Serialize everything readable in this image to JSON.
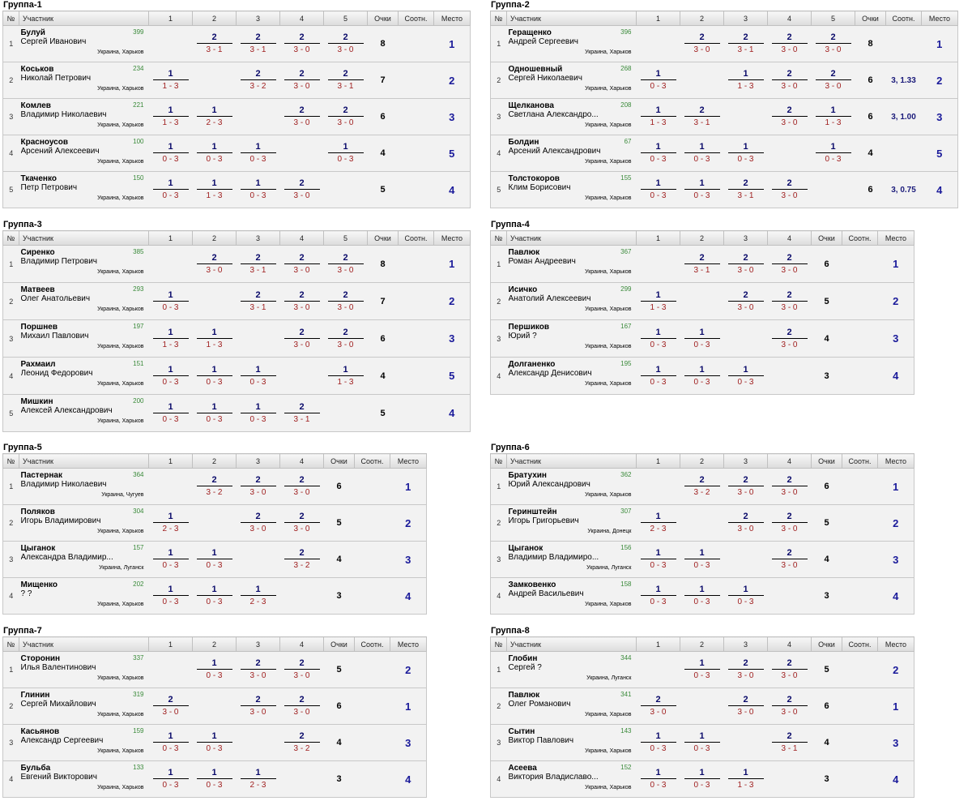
{
  "headers": {
    "num": "№",
    "participant": "Участник",
    "points": "Очки",
    "ratio": "Соотн.",
    "place": "Место"
  },
  "groups": [
    {
      "title": "Группа-1",
      "players": [
        {
          "surname": "Булуй",
          "first": "Сергей Иванович",
          "rating": "399",
          "city": "Украина, Харьков",
          "results": [
            null,
            [
              "2",
              "3 - 1"
            ],
            [
              "2",
              "3 - 1"
            ],
            [
              "2",
              "3 - 0"
            ],
            [
              "2",
              "3 - 0"
            ]
          ],
          "points": "8",
          "ratio": "",
          "place": "1"
        },
        {
          "surname": "Коськов",
          "first": "Николай Петрович",
          "rating": "234",
          "city": "Украина, Харьков",
          "results": [
            [
              "1",
              "1 - 3"
            ],
            null,
            [
              "2",
              "3 - 2"
            ],
            [
              "2",
              "3 - 0"
            ],
            [
              "2",
              "3 - 1"
            ]
          ],
          "points": "7",
          "ratio": "",
          "place": "2"
        },
        {
          "surname": "Комлев",
          "first": "Владимир Николаевич",
          "rating": "221",
          "city": "Украина, Харьков",
          "results": [
            [
              "1",
              "1 - 3"
            ],
            [
              "1",
              "2 - 3"
            ],
            null,
            [
              "2",
              "3 - 0"
            ],
            [
              "2",
              "3 - 0"
            ]
          ],
          "points": "6",
          "ratio": "",
          "place": "3"
        },
        {
          "surname": "Красноусов",
          "first": "Арсений Алексеевич",
          "rating": "100",
          "city": "Украина, Харьков",
          "results": [
            [
              "1",
              "0 - 3"
            ],
            [
              "1",
              "0 - 3"
            ],
            [
              "1",
              "0 - 3"
            ],
            null,
            [
              "1",
              "0 - 3"
            ]
          ],
          "points": "4",
          "ratio": "",
          "place": "5"
        },
        {
          "surname": "Ткаченко",
          "first": "Петр Петрович",
          "rating": "150",
          "city": "Украина, Харьков",
          "results": [
            [
              "1",
              "0 - 3"
            ],
            [
              "1",
              "1 - 3"
            ],
            [
              "1",
              "0 - 3"
            ],
            [
              "2",
              "3 - 0"
            ],
            null
          ],
          "points": "5",
          "ratio": "",
          "place": "4"
        }
      ]
    },
    {
      "title": "Группа-2",
      "players": [
        {
          "surname": "Геращенко",
          "first": "Андрей Сергеевич",
          "rating": "396",
          "city": "Украина, Харьков",
          "results": [
            null,
            [
              "2",
              "3 - 0"
            ],
            [
              "2",
              "3 - 1"
            ],
            [
              "2",
              "3 - 0"
            ],
            [
              "2",
              "3 - 0"
            ]
          ],
          "points": "8",
          "ratio": "",
          "place": "1"
        },
        {
          "surname": "Одношевный",
          "first": "Сергей Николаевич",
          "rating": "268",
          "city": "Украина, Харьков",
          "results": [
            [
              "1",
              "0 - 3"
            ],
            null,
            [
              "1",
              "1 - 3"
            ],
            [
              "2",
              "3 - 0"
            ],
            [
              "2",
              "3 - 0"
            ]
          ],
          "points": "6",
          "ratio": "3, 1.33",
          "place": "2"
        },
        {
          "surname": "Щелканова",
          "first": "Светлана Александро...",
          "rating": "208",
          "city": "Украина, Харьков",
          "results": [
            [
              "1",
              "1 - 3"
            ],
            [
              "2",
              "3 - 1"
            ],
            null,
            [
              "2",
              "3 - 0"
            ],
            [
              "1",
              "1 - 3"
            ]
          ],
          "points": "6",
          "ratio": "3, 1.00",
          "place": "3"
        },
        {
          "surname": "Болдин",
          "first": "Арсений Александрович",
          "rating": "67",
          "city": "Украина, Харьков",
          "results": [
            [
              "1",
              "0 - 3"
            ],
            [
              "1",
              "0 - 3"
            ],
            [
              "1",
              "0 - 3"
            ],
            null,
            [
              "1",
              "0 - 3"
            ]
          ],
          "points": "4",
          "ratio": "",
          "place": "5"
        },
        {
          "surname": "Толстокоров",
          "first": "Клим Борисович",
          "rating": "155",
          "city": "Украина, Харьков",
          "results": [
            [
              "1",
              "0 - 3"
            ],
            [
              "1",
              "0 - 3"
            ],
            [
              "2",
              "3 - 1"
            ],
            [
              "2",
              "3 - 0"
            ],
            null
          ],
          "points": "6",
          "ratio": "3, 0.75",
          "place": "4"
        }
      ]
    },
    {
      "title": "Группа-3",
      "players": [
        {
          "surname": "Сиренко",
          "first": "Владимир Петрович",
          "rating": "385",
          "city": "Украина, Харьков",
          "results": [
            null,
            [
              "2",
              "3 - 0"
            ],
            [
              "2",
              "3 - 1"
            ],
            [
              "2",
              "3 - 0"
            ],
            [
              "2",
              "3 - 0"
            ]
          ],
          "points": "8",
          "ratio": "",
          "place": "1"
        },
        {
          "surname": "Матвеев",
          "first": "Олег Анатольевич",
          "rating": "293",
          "city": "Украина, Харьков",
          "results": [
            [
              "1",
              "0 - 3"
            ],
            null,
            [
              "2",
              "3 - 1"
            ],
            [
              "2",
              "3 - 0"
            ],
            [
              "2",
              "3 - 0"
            ]
          ],
          "points": "7",
          "ratio": "",
          "place": "2"
        },
        {
          "surname": "Поршнев",
          "first": "Михаил Павлович",
          "rating": "197",
          "city": "Украина, Харьков",
          "results": [
            [
              "1",
              "1 - 3"
            ],
            [
              "1",
              "1 - 3"
            ],
            null,
            [
              "2",
              "3 - 0"
            ],
            [
              "2",
              "3 - 0"
            ]
          ],
          "points": "6",
          "ratio": "",
          "place": "3"
        },
        {
          "surname": "Рахмаил",
          "first": "Леонид Федорович",
          "rating": "151",
          "city": "Украина, Харьков",
          "results": [
            [
              "1",
              "0 - 3"
            ],
            [
              "1",
              "0 - 3"
            ],
            [
              "1",
              "0 - 3"
            ],
            null,
            [
              "1",
              "1 - 3"
            ]
          ],
          "points": "4",
          "ratio": "",
          "place": "5"
        },
        {
          "surname": "Мишкин",
          "first": "Алексей Александрович",
          "rating": "200",
          "city": "Украина, Харьков",
          "results": [
            [
              "1",
              "0 - 3"
            ],
            [
              "1",
              "0 - 3"
            ],
            [
              "1",
              "0 - 3"
            ],
            [
              "2",
              "3 - 1"
            ],
            null
          ],
          "points": "5",
          "ratio": "",
          "place": "4"
        }
      ]
    },
    {
      "title": "Группа-4",
      "players": [
        {
          "surname": "Павлюк",
          "first": "Роман Андреевич",
          "rating": "367",
          "city": "Украина, Харьков",
          "results": [
            null,
            [
              "2",
              "3 - 1"
            ],
            [
              "2",
              "3 - 0"
            ],
            [
              "2",
              "3 - 0"
            ]
          ],
          "points": "6",
          "ratio": "",
          "place": "1"
        },
        {
          "surname": "Исичко",
          "first": "Анатолий Алексеевич",
          "rating": "299",
          "city": "Украина, Харьков",
          "results": [
            [
              "1",
              "1 - 3"
            ],
            null,
            [
              "2",
              "3 - 0"
            ],
            [
              "2",
              "3 - 0"
            ]
          ],
          "points": "5",
          "ratio": "",
          "place": "2"
        },
        {
          "surname": "Першиков",
          "first": "Юрий ?",
          "rating": "167",
          "city": "Украина, Харьков",
          "results": [
            [
              "1",
              "0 - 3"
            ],
            [
              "1",
              "0 - 3"
            ],
            null,
            [
              "2",
              "3 - 0"
            ]
          ],
          "points": "4",
          "ratio": "",
          "place": "3"
        },
        {
          "surname": "Долганенко",
          "first": "Александр Денисович",
          "rating": "195",
          "city": "Украина, Харьков",
          "results": [
            [
              "1",
              "0 - 3"
            ],
            [
              "1",
              "0 - 3"
            ],
            [
              "1",
              "0 - 3"
            ],
            null
          ],
          "points": "3",
          "ratio": "",
          "place": "4"
        }
      ]
    },
    {
      "title": "Группа-5",
      "players": [
        {
          "surname": "Пастернак",
          "first": "Владимир Николаевич",
          "rating": "364",
          "city": "Украина, Чугуев",
          "results": [
            null,
            [
              "2",
              "3 - 2"
            ],
            [
              "2",
              "3 - 0"
            ],
            [
              "2",
              "3 - 0"
            ]
          ],
          "points": "6",
          "ratio": "",
          "place": "1"
        },
        {
          "surname": "Поляков",
          "first": "Игорь Владимирович",
          "rating": "304",
          "city": "Украина, Харьков",
          "results": [
            [
              "1",
              "2 - 3"
            ],
            null,
            [
              "2",
              "3 - 0"
            ],
            [
              "2",
              "3 - 0"
            ]
          ],
          "points": "5",
          "ratio": "",
          "place": "2"
        },
        {
          "surname": "Цыганок",
          "first": "Александра Владимир...",
          "rating": "157",
          "city": "Украина, Луганск",
          "results": [
            [
              "1",
              "0 - 3"
            ],
            [
              "1",
              "0 - 3"
            ],
            null,
            [
              "2",
              "3 - 2"
            ]
          ],
          "points": "4",
          "ratio": "",
          "place": "3"
        },
        {
          "surname": "Мищенко",
          "first": "? ?",
          "rating": "202",
          "city": "Украина, Харьков",
          "results": [
            [
              "1",
              "0 - 3"
            ],
            [
              "1",
              "0 - 3"
            ],
            [
              "1",
              "2 - 3"
            ],
            null
          ],
          "points": "3",
          "ratio": "",
          "place": "4"
        }
      ]
    },
    {
      "title": "Группа-6",
      "players": [
        {
          "surname": "Братухин",
          "first": "Юрий Александрович",
          "rating": "362",
          "city": "Украина, Харьков",
          "results": [
            null,
            [
              "2",
              "3 - 2"
            ],
            [
              "2",
              "3 - 0"
            ],
            [
              "2",
              "3 - 0"
            ]
          ],
          "points": "6",
          "ratio": "",
          "place": "1"
        },
        {
          "surname": "Геринштейн",
          "first": "Игорь Григорьевич",
          "rating": "307",
          "city": "Украина, Донецк",
          "results": [
            [
              "1",
              "2 - 3"
            ],
            null,
            [
              "2",
              "3 - 0"
            ],
            [
              "2",
              "3 - 0"
            ]
          ],
          "points": "5",
          "ratio": "",
          "place": "2"
        },
        {
          "surname": "Цыганок",
          "first": "Владимир Владимиро...",
          "rating": "156",
          "city": "Украина, Луганск",
          "results": [
            [
              "1",
              "0 - 3"
            ],
            [
              "1",
              "0 - 3"
            ],
            null,
            [
              "2",
              "3 - 0"
            ]
          ],
          "points": "4",
          "ratio": "",
          "place": "3"
        },
        {
          "surname": "Замковенко",
          "first": "Андрей Васильевич",
          "rating": "158",
          "city": "Украина, Харьков",
          "results": [
            [
              "1",
              "0 - 3"
            ],
            [
              "1",
              "0 - 3"
            ],
            [
              "1",
              "0 - 3"
            ],
            null
          ],
          "points": "3",
          "ratio": "",
          "place": "4"
        }
      ]
    },
    {
      "title": "Группа-7",
      "players": [
        {
          "surname": "Сторонин",
          "first": "Илья Валентинович",
          "rating": "337",
          "city": "Украина, Харьков",
          "results": [
            null,
            [
              "1",
              "0 - 3"
            ],
            [
              "2",
              "3 - 0"
            ],
            [
              "2",
              "3 - 0"
            ]
          ],
          "points": "5",
          "ratio": "",
          "place": "2"
        },
        {
          "surname": "Глинин",
          "first": "Сергей Михайлович",
          "rating": "319",
          "city": "Украина, Харьков",
          "results": [
            [
              "2",
              "3 - 0"
            ],
            null,
            [
              "2",
              "3 - 0"
            ],
            [
              "2",
              "3 - 0"
            ]
          ],
          "points": "6",
          "ratio": "",
          "place": "1"
        },
        {
          "surname": "Касьянов",
          "first": "Александр Сергеевич",
          "rating": "159",
          "city": "Украина, Харьков",
          "results": [
            [
              "1",
              "0 - 3"
            ],
            [
              "1",
              "0 - 3"
            ],
            null,
            [
              "2",
              "3 - 2"
            ]
          ],
          "points": "4",
          "ratio": "",
          "place": "3"
        },
        {
          "surname": "Бульба",
          "first": "Евгений Викторович",
          "rating": "133",
          "city": "Украина, Харьков",
          "results": [
            [
              "1",
              "0 - 3"
            ],
            [
              "1",
              "0 - 3"
            ],
            [
              "1",
              "2 - 3"
            ],
            null
          ],
          "points": "3",
          "ratio": "",
          "place": "4"
        }
      ]
    },
    {
      "title": "Группа-8",
      "players": [
        {
          "surname": "Глобин",
          "first": "Сергей ?",
          "rating": "344",
          "city": "Украина, Луганск",
          "results": [
            null,
            [
              "1",
              "0 - 3"
            ],
            [
              "2",
              "3 - 0"
            ],
            [
              "2",
              "3 - 0"
            ]
          ],
          "points": "5",
          "ratio": "",
          "place": "2"
        },
        {
          "surname": "Павлюк",
          "first": "Олег Романович",
          "rating": "341",
          "city": "Украина, Харьков",
          "results": [
            [
              "2",
              "3 - 0"
            ],
            null,
            [
              "2",
              "3 - 0"
            ],
            [
              "2",
              "3 - 0"
            ]
          ],
          "points": "6",
          "ratio": "",
          "place": "1"
        },
        {
          "surname": "Сытин",
          "first": "Виктор Павлович",
          "rating": "143",
          "city": "Украина, Харьков",
          "results": [
            [
              "1",
              "0 - 3"
            ],
            [
              "1",
              "0 - 3"
            ],
            null,
            [
              "2",
              "3 - 1"
            ]
          ],
          "points": "4",
          "ratio": "",
          "place": "3"
        },
        {
          "surname": "Асеева",
          "first": "Виктория Владиславо...",
          "rating": "152",
          "city": "Украина, Харьков",
          "results": [
            [
              "1",
              "0 - 3"
            ],
            [
              "1",
              "0 - 3"
            ],
            [
              "1",
              "1 - 3"
            ],
            null
          ],
          "points": "3",
          "ratio": "",
          "place": "4"
        }
      ]
    }
  ]
}
